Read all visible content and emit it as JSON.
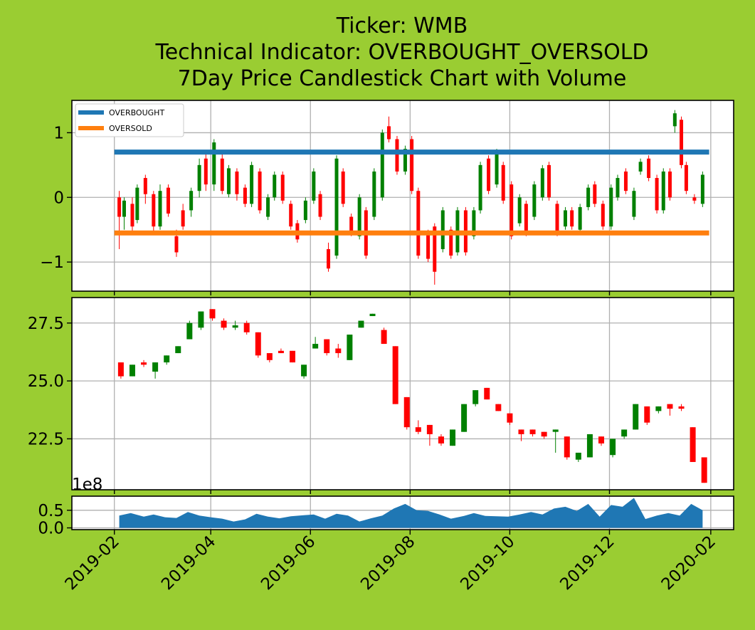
{
  "title_lines": [
    "Ticker: WMB",
    "Technical Indicator: OVERBOUGHT_OVERSOLD",
    "7Day Price Candlestick Chart with Volume"
  ],
  "colors": {
    "background": "#9ACD32",
    "up": "#008000",
    "down": "#FF0000",
    "overbought": "#1f77b4",
    "oversold": "#ff7f0e",
    "volume": "#1f77b4"
  },
  "chart_data": [
    {
      "type": "line",
      "name": "indicator-panel",
      "ylim": [
        -1.45,
        1.5
      ],
      "yticks": [
        -1,
        0,
        1
      ],
      "ytick_labels": [
        "−1",
        "0",
        "1"
      ],
      "grid": true,
      "legend": {
        "placement": "top-left",
        "entries": [
          "OVERBOUGHT",
          "OVERSOLD"
        ]
      },
      "series": [
        {
          "name": "OVERBOUGHT",
          "x": [
            "2019-02-01",
            "2020-01-31"
          ],
          "values": [
            0.7,
            0.7
          ]
        },
        {
          "name": "OVERSOLD",
          "x": [
            "2019-02-01",
            "2020-01-31"
          ],
          "values": [
            -0.55,
            -0.55
          ]
        }
      ],
      "candles": [
        [
          "2019-02-04",
          0.0,
          -0.3,
          0.1,
          -0.8
        ],
        [
          "2019-02-07",
          -0.3,
          -0.05,
          0.0,
          -0.5
        ],
        [
          "2019-02-12",
          -0.1,
          -0.45,
          0.0,
          -0.55
        ],
        [
          "2019-02-15",
          -0.35,
          0.15,
          0.2,
          -0.4
        ],
        [
          "2019-02-20",
          0.3,
          0.05,
          0.35,
          -0.1
        ],
        [
          "2019-02-25",
          0.05,
          -0.45,
          0.1,
          -0.55
        ],
        [
          "2019-03-01",
          -0.45,
          0.1,
          0.2,
          -0.5
        ],
        [
          "2019-03-06",
          0.15,
          -0.25,
          0.2,
          -0.3
        ],
        [
          "2019-03-11",
          -0.6,
          -0.85,
          -0.5,
          -0.92
        ],
        [
          "2019-03-15",
          -0.2,
          -0.45,
          -0.1,
          -0.5
        ],
        [
          "2019-03-20",
          -0.2,
          0.1,
          0.15,
          -0.3
        ],
        [
          "2019-03-25",
          0.1,
          0.5,
          0.6,
          0.0
        ],
        [
          "2019-03-29",
          0.6,
          0.2,
          0.7,
          0.1
        ],
        [
          "2019-04-03",
          0.2,
          0.85,
          0.9,
          0.1
        ],
        [
          "2019-04-08",
          0.6,
          0.1,
          0.7,
          0.05
        ],
        [
          "2019-04-12",
          0.05,
          0.45,
          0.5,
          0.0
        ],
        [
          "2019-04-17",
          0.4,
          0.05,
          0.45,
          -0.05
        ],
        [
          "2019-04-22",
          0.15,
          -0.1,
          0.2,
          -0.15
        ],
        [
          "2019-04-26",
          -0.1,
          0.5,
          0.55,
          -0.15
        ],
        [
          "2019-05-01",
          0.4,
          -0.2,
          0.45,
          -0.25
        ],
        [
          "2019-05-06",
          -0.3,
          0.0,
          0.05,
          -0.35
        ],
        [
          "2019-05-10",
          0.0,
          0.35,
          0.4,
          -0.05
        ],
        [
          "2019-05-15",
          0.35,
          -0.05,
          0.4,
          -0.1
        ],
        [
          "2019-05-20",
          -0.1,
          -0.45,
          -0.05,
          -0.5
        ],
        [
          "2019-05-24",
          -0.4,
          -0.65,
          -0.35,
          -0.7
        ],
        [
          "2019-05-29",
          -0.35,
          -0.05,
          0.0,
          -0.4
        ],
        [
          "2019-06-03",
          -0.05,
          0.4,
          0.45,
          -0.1
        ],
        [
          "2019-06-07",
          0.05,
          -0.3,
          0.1,
          -0.35
        ],
        [
          "2019-06-12",
          -0.8,
          -1.1,
          -0.7,
          -1.15
        ],
        [
          "2019-06-17",
          -0.9,
          0.6,
          0.65,
          -0.95
        ],
        [
          "2019-06-21",
          0.4,
          -0.1,
          0.45,
          -0.15
        ],
        [
          "2019-06-26",
          -0.3,
          -0.55,
          -0.25,
          -0.6
        ],
        [
          "2019-07-01",
          -0.6,
          0.0,
          0.05,
          -0.65
        ],
        [
          "2019-07-05",
          -0.2,
          -0.9,
          -0.15,
          -0.95
        ],
        [
          "2019-07-10",
          -0.3,
          0.4,
          0.45,
          -0.35
        ],
        [
          "2019-07-15",
          0.0,
          1.0,
          1.05,
          -0.05
        ],
        [
          "2019-07-19",
          1.1,
          0.9,
          1.25,
          0.85
        ],
        [
          "2019-07-24",
          0.9,
          0.4,
          0.95,
          0.35
        ],
        [
          "2019-07-29",
          0.4,
          0.75,
          0.8,
          0.35
        ],
        [
          "2019-08-02",
          0.9,
          0.1,
          0.95,
          0.05
        ],
        [
          "2019-08-06",
          0.1,
          -0.9,
          0.15,
          -0.95
        ],
        [
          "2019-08-12",
          -0.55,
          -0.95,
          -0.5,
          -1.0
        ],
        [
          "2019-08-16",
          -0.45,
          -1.15,
          -0.4,
          -1.35
        ],
        [
          "2019-08-21",
          -0.8,
          -0.2,
          -0.15,
          -0.85
        ],
        [
          "2019-08-26",
          -0.5,
          -0.9,
          -0.45,
          -0.95
        ],
        [
          "2019-08-30",
          -0.85,
          -0.2,
          -0.15,
          -0.9
        ],
        [
          "2019-09-04",
          -0.2,
          -0.85,
          -0.15,
          -0.9
        ],
        [
          "2019-09-09",
          -0.6,
          -0.2,
          -0.15,
          -0.65
        ],
        [
          "2019-09-13",
          -0.2,
          0.5,
          0.55,
          -0.25
        ],
        [
          "2019-09-18",
          0.6,
          0.1,
          0.65,
          0.05
        ],
        [
          "2019-09-23",
          0.2,
          0.7,
          0.75,
          0.15
        ],
        [
          "2019-09-27",
          0.5,
          -0.05,
          0.55,
          -0.1
        ],
        [
          "2019-10-02",
          0.2,
          -0.6,
          0.25,
          -0.65
        ],
        [
          "2019-10-07",
          -0.4,
          0.0,
          0.05,
          -0.45
        ],
        [
          "2019-10-11",
          -0.1,
          -0.55,
          -0.05,
          -0.6
        ],
        [
          "2019-10-16",
          -0.3,
          0.2,
          0.25,
          -0.35
        ],
        [
          "2019-10-21",
          0.0,
          0.45,
          0.5,
          -0.05
        ],
        [
          "2019-10-25",
          0.5,
          0.0,
          0.55,
          -0.05
        ],
        [
          "2019-10-30",
          -0.1,
          -0.55,
          -0.05,
          -0.6
        ],
        [
          "2019-11-04",
          -0.45,
          -0.2,
          -0.15,
          -0.5
        ],
        [
          "2019-11-08",
          -0.2,
          -0.45,
          -0.15,
          -0.5
        ],
        [
          "2019-11-13",
          -0.5,
          -0.15,
          -0.1,
          -0.55
        ],
        [
          "2019-11-18",
          -0.15,
          0.15,
          0.2,
          -0.2
        ],
        [
          "2019-11-22",
          0.2,
          -0.1,
          0.25,
          -0.15
        ],
        [
          "2019-11-27",
          -0.1,
          -0.45,
          -0.05,
          -0.5
        ],
        [
          "2019-12-02",
          -0.45,
          0.15,
          0.2,
          -0.5
        ],
        [
          "2019-12-06",
          0.0,
          0.3,
          0.35,
          -0.05
        ],
        [
          "2019-12-11",
          0.4,
          0.1,
          0.45,
          0.05
        ],
        [
          "2019-12-16",
          -0.3,
          0.1,
          0.15,
          -0.35
        ],
        [
          "2019-12-20",
          0.4,
          0.55,
          0.6,
          0.35
        ],
        [
          "2019-12-25",
          0.6,
          0.3,
          0.65,
          0.25
        ],
        [
          "2019-12-30",
          0.3,
          -0.2,
          0.35,
          -0.25
        ],
        [
          "2020-01-03",
          -0.2,
          0.4,
          0.45,
          -0.25
        ],
        [
          "2020-01-07",
          0.4,
          0.0,
          0.45,
          -0.05
        ],
        [
          "2020-01-10",
          1.1,
          1.3,
          1.35,
          1.0
        ],
        [
          "2020-01-14",
          1.2,
          0.5,
          1.25,
          0.45
        ],
        [
          "2020-01-17",
          0.5,
          0.1,
          0.55,
          0.05
        ],
        [
          "2020-01-22",
          0.0,
          -0.05,
          0.05,
          -0.1
        ],
        [
          "2020-01-27",
          -0.1,
          0.35,
          0.4,
          -0.15
        ]
      ]
    },
    {
      "type": "bar",
      "name": "price-panel",
      "ylim": [
        20.3,
        28.6
      ],
      "yticks": [
        22.5,
        25.0,
        27.5
      ],
      "ytick_labels": [
        "22.5",
        "25.0",
        "27.5"
      ],
      "grid": true,
      "candles": [
        [
          "2019-02-05",
          25.8,
          25.2,
          25.8,
          25.1
        ],
        [
          "2019-02-12",
          25.2,
          25.7,
          25.7,
          25.2
        ],
        [
          "2019-02-19",
          25.8,
          25.7,
          25.9,
          25.6
        ],
        [
          "2019-02-26",
          25.4,
          25.8,
          25.8,
          25.1
        ],
        [
          "2019-03-05",
          25.8,
          26.1,
          26.1,
          25.7
        ],
        [
          "2019-03-12",
          26.2,
          26.5,
          26.5,
          26.2
        ],
        [
          "2019-03-19",
          26.8,
          27.5,
          27.6,
          26.8
        ],
        [
          "2019-03-26",
          27.3,
          28.0,
          28.0,
          27.2
        ],
        [
          "2019-04-02",
          28.1,
          27.7,
          28.1,
          27.6
        ],
        [
          "2019-04-09",
          27.6,
          27.3,
          27.7,
          27.2
        ],
        [
          "2019-04-16",
          27.3,
          27.4,
          27.6,
          27.2
        ],
        [
          "2019-04-23",
          27.5,
          27.1,
          27.6,
          27.0
        ],
        [
          "2019-04-30",
          27.1,
          26.1,
          27.1,
          26.0
        ],
        [
          "2019-05-07",
          26.2,
          25.9,
          26.2,
          25.8
        ],
        [
          "2019-05-14",
          26.3,
          26.2,
          26.4,
          26.2
        ],
        [
          "2019-05-21",
          26.3,
          25.8,
          26.3,
          25.8
        ],
        [
          "2019-05-28",
          25.2,
          25.7,
          25.7,
          25.1
        ],
        [
          "2019-06-04",
          26.4,
          26.6,
          26.9,
          26.4
        ],
        [
          "2019-06-11",
          26.8,
          26.2,
          26.8,
          26.1
        ],
        [
          "2019-06-18",
          26.4,
          26.2,
          26.6,
          26.0
        ],
        [
          "2019-06-25",
          25.9,
          27.0,
          27.0,
          25.9
        ],
        [
          "2019-07-02",
          27.3,
          27.6,
          27.6,
          27.3
        ],
        [
          "2019-07-09",
          27.8,
          27.9,
          27.9,
          27.8
        ],
        [
          "2019-07-16",
          27.2,
          26.6,
          27.3,
          26.6
        ],
        [
          "2019-07-23",
          26.5,
          24.0,
          26.5,
          24.0
        ],
        [
          "2019-07-30",
          24.3,
          23.0,
          24.3,
          22.9
        ],
        [
          "2019-08-06",
          23.0,
          22.8,
          23.3,
          22.7
        ],
        [
          "2019-08-13",
          23.1,
          22.7,
          23.1,
          22.2
        ],
        [
          "2019-08-20",
          22.6,
          22.3,
          22.7,
          22.2
        ],
        [
          "2019-08-27",
          22.2,
          22.9,
          22.9,
          22.2
        ],
        [
          "2019-09-03",
          22.8,
          24.0,
          24.0,
          22.8
        ],
        [
          "2019-09-10",
          24.0,
          24.6,
          24.6,
          23.9
        ],
        [
          "2019-09-17",
          24.7,
          24.2,
          24.7,
          24.2
        ],
        [
          "2019-09-24",
          24.0,
          23.7,
          24.0,
          23.7
        ],
        [
          "2019-10-01",
          23.6,
          23.2,
          23.6,
          23.1
        ],
        [
          "2019-10-08",
          22.9,
          22.7,
          22.9,
          22.4
        ],
        [
          "2019-10-15",
          22.9,
          22.7,
          22.9,
          22.6
        ],
        [
          "2019-10-22",
          22.8,
          22.6,
          22.8,
          22.5
        ],
        [
          "2019-10-29",
          22.8,
          22.9,
          22.9,
          21.9
        ],
        [
          "2019-11-05",
          22.6,
          21.7,
          22.6,
          21.6
        ],
        [
          "2019-11-12",
          21.6,
          21.9,
          21.9,
          21.5
        ],
        [
          "2019-11-19",
          21.7,
          22.7,
          22.7,
          21.7
        ],
        [
          "2019-11-26",
          22.6,
          22.3,
          22.6,
          22.2
        ],
        [
          "2019-12-03",
          21.8,
          22.5,
          22.5,
          21.7
        ],
        [
          "2019-12-10",
          22.6,
          22.9,
          22.9,
          22.5
        ],
        [
          "2019-12-17",
          22.9,
          24.0,
          24.0,
          22.9
        ],
        [
          "2019-12-24",
          23.9,
          23.2,
          23.9,
          23.1
        ],
        [
          "2019-12-31",
          23.7,
          23.9,
          23.9,
          23.6
        ],
        [
          "2020-01-07",
          24.0,
          23.8,
          24.0,
          23.5
        ],
        [
          "2020-01-14",
          23.9,
          23.8,
          24.0,
          23.7
        ],
        [
          "2020-01-21",
          23.0,
          21.5,
          23.0,
          21.5
        ],
        [
          "2020-01-28",
          21.7,
          20.6,
          21.7,
          20.6
        ]
      ]
    },
    {
      "type": "area",
      "name": "volume-panel",
      "ylim": [
        -0.05,
        0.9
      ],
      "yticks": [
        0.0,
        0.5
      ],
      "ytick_labels": [
        "0.0",
        "0.5"
      ],
      "offset_label": "1e8",
      "grid": true,
      "x": [
        "2019-02-04",
        "2019-02-11",
        "2019-02-19",
        "2019-02-25",
        "2019-03-04",
        "2019-03-11",
        "2019-03-18",
        "2019-03-25",
        "2019-04-01",
        "2019-04-08",
        "2019-04-15",
        "2019-04-22",
        "2019-04-29",
        "2019-05-06",
        "2019-05-13",
        "2019-05-20",
        "2019-05-28",
        "2019-06-03",
        "2019-06-10",
        "2019-06-17",
        "2019-06-24",
        "2019-07-01",
        "2019-07-08",
        "2019-07-15",
        "2019-07-22",
        "2019-07-29",
        "2019-08-05",
        "2019-08-12",
        "2019-08-19",
        "2019-08-26",
        "2019-09-03",
        "2019-09-09",
        "2019-09-16",
        "2019-09-23",
        "2019-09-30",
        "2019-10-07",
        "2019-10-14",
        "2019-10-21",
        "2019-10-28",
        "2019-11-04",
        "2019-11-11",
        "2019-11-18",
        "2019-11-25",
        "2019-12-02",
        "2019-12-09",
        "2019-12-16",
        "2019-12-23",
        "2019-12-30",
        "2020-01-06",
        "2020-01-13",
        "2020-01-20",
        "2020-01-27"
      ],
      "values": [
        0.35,
        0.42,
        0.32,
        0.38,
        0.3,
        0.28,
        0.45,
        0.35,
        0.3,
        0.26,
        0.18,
        0.24,
        0.4,
        0.32,
        0.27,
        0.33,
        0.36,
        0.38,
        0.26,
        0.4,
        0.35,
        0.18,
        0.27,
        0.35,
        0.55,
        0.68,
        0.5,
        0.48,
        0.38,
        0.26,
        0.34,
        0.42,
        0.34,
        0.33,
        0.32,
        0.38,
        0.45,
        0.38,
        0.55,
        0.6,
        0.48,
        0.68,
        0.32,
        0.65,
        0.6,
        0.85,
        0.25,
        0.35,
        0.42,
        0.35,
        0.68,
        0.5
      ]
    }
  ],
  "x_axis": {
    "range": [
      "2019-01-06",
      "2020-02-15"
    ],
    "ticks": [
      "2019-02-01",
      "2019-04-01",
      "2019-06-01",
      "2019-08-01",
      "2019-10-01",
      "2019-12-01",
      "2020-02-01"
    ],
    "tick_labels": [
      "2019-02",
      "2019-04",
      "2019-06",
      "2019-08",
      "2019-10",
      "2019-12",
      "2020-02"
    ]
  }
}
